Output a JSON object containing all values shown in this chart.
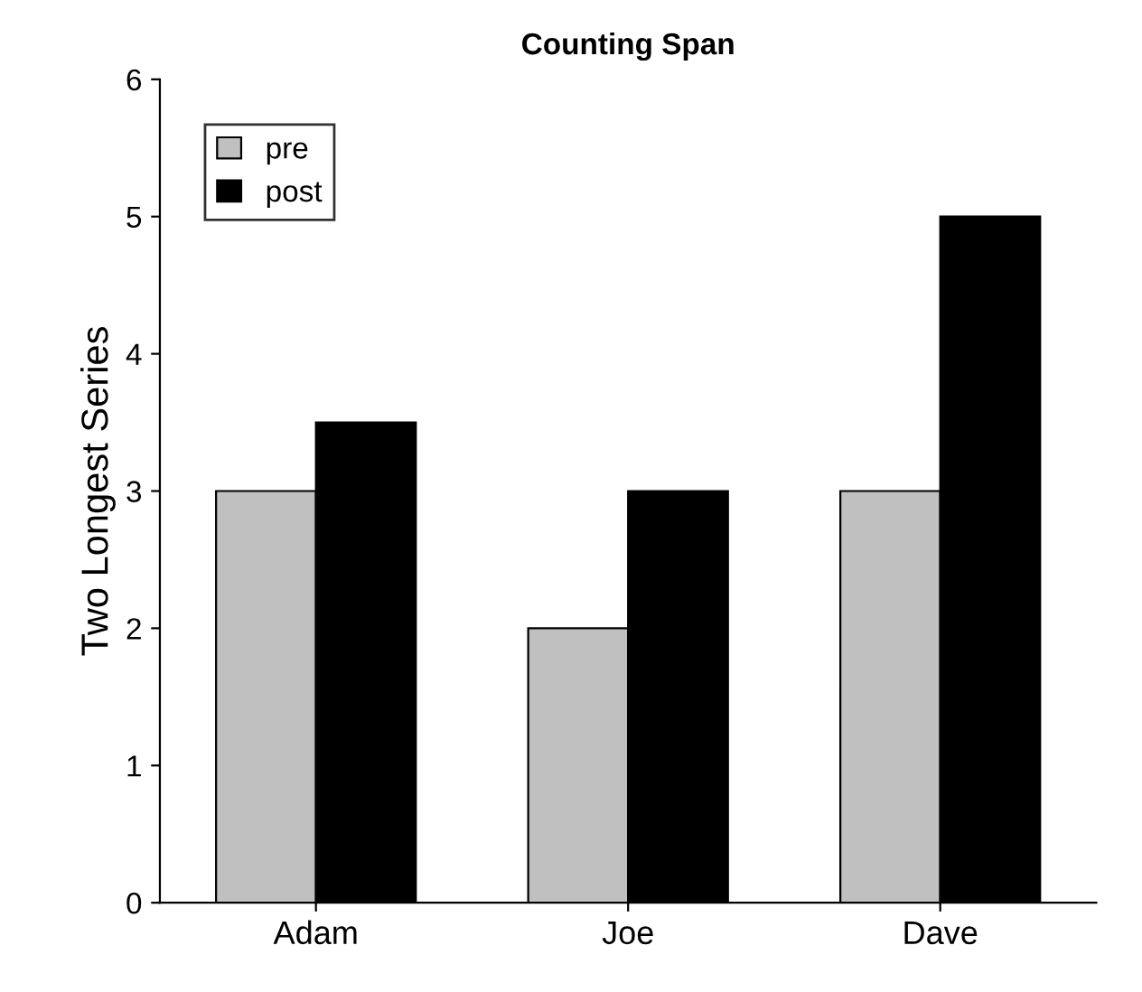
{
  "chart_data": {
    "type": "bar",
    "title": "Counting Span",
    "ylabel": "Two Longest Series",
    "categories": [
      "Adam",
      "Joe",
      "Dave"
    ],
    "series": [
      {
        "name": "pre",
        "color": "#c0c0c0",
        "values": [
          3,
          2,
          3
        ]
      },
      {
        "name": "post",
        "color": "#000000",
        "values": [
          3.5,
          3,
          5
        ]
      }
    ],
    "ylim": [
      0,
      6
    ],
    "yticks": [
      0,
      1,
      2,
      3,
      4,
      5,
      6
    ],
    "grid": false,
    "legend": "top left"
  }
}
